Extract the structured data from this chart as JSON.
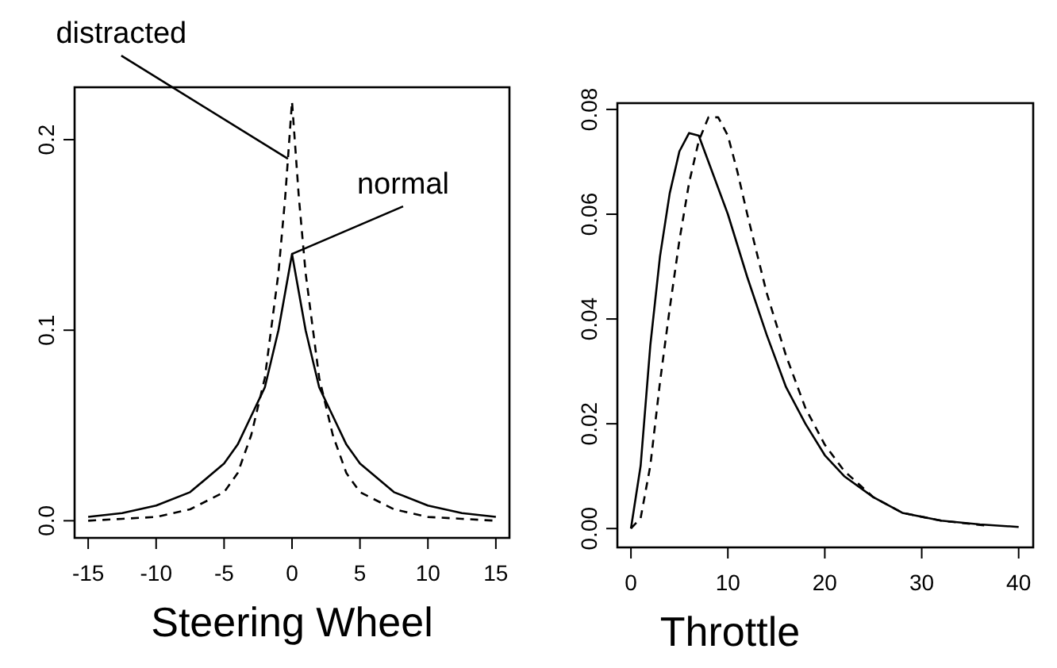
{
  "chart_data": [
    {
      "type": "line",
      "xlabel": "Steering Wheel",
      "xlim": [
        -16,
        16
      ],
      "ylim": [
        -0.009,
        0.2275
      ],
      "xticks": [
        -15,
        -10,
        -5,
        0,
        5,
        10,
        15
      ],
      "yticks": [
        {
          "value": 0,
          "label": "0.0"
        },
        0.1,
        0.2
      ],
      "grid": false,
      "marker": "none",
      "annotations": [
        {
          "text": "distracted",
          "x": -0.3,
          "y": 0.19
        },
        {
          "text": "normal",
          "x": 0,
          "y": 0.14
        }
      ],
      "series": [
        {
          "color": "#000000",
          "line_style": "solid",
          "x": [
            -15,
            -12.5,
            -10,
            -7.5,
            -5,
            -4,
            -3,
            -2,
            -1,
            -0.5,
            0,
            0.5,
            1,
            2,
            3,
            4,
            5,
            7.5,
            10,
            12.5,
            15
          ],
          "values": [
            0.002,
            0.004,
            0.008,
            0.015,
            0.03,
            0.04,
            0.055,
            0.07,
            0.1,
            0.12,
            0.14,
            0.12,
            0.1,
            0.07,
            0.055,
            0.04,
            0.03,
            0.015,
            0.008,
            0.004,
            0.002
          ]
        },
        {
          "color": "#000000",
          "line_style": "dashed",
          "x": [
            -15,
            -12.5,
            -10,
            -7.5,
            -5,
            -4,
            -3,
            -2,
            -1,
            -0.5,
            0,
            0.5,
            1,
            2,
            3,
            4,
            5,
            7.5,
            10,
            12.5,
            15
          ],
          "values": [
            0.0,
            0.001,
            0.002,
            0.006,
            0.015,
            0.025,
            0.045,
            0.075,
            0.13,
            0.17,
            0.22,
            0.17,
            0.13,
            0.075,
            0.045,
            0.025,
            0.015,
            0.006,
            0.002,
            0.001,
            0.0
          ]
        }
      ]
    },
    {
      "type": "line",
      "xlabel": "Throttle",
      "xlim": [
        -1.4,
        41.5
      ],
      "ylim": [
        -0.0036,
        0.0812
      ],
      "xticks": [
        0,
        10,
        20,
        30,
        40
      ],
      "yticks": [
        {
          "value": 0,
          "label": "0.00"
        },
        0.02,
        0.04,
        0.06,
        0.08
      ],
      "grid": false,
      "marker": "none",
      "series": [
        {
          "color": "#000000",
          "line_style": "solid",
          "x": [
            0,
            1,
            2,
            3,
            4,
            5,
            6,
            7,
            8,
            10,
            12,
            14,
            16,
            18,
            20,
            22,
            25,
            28,
            32,
            36,
            40
          ],
          "values": [
            0,
            0.012,
            0.035,
            0.052,
            0.064,
            0.072,
            0.0755,
            0.075,
            0.07,
            0.06,
            0.048,
            0.037,
            0.027,
            0.02,
            0.014,
            0.01,
            0.006,
            0.003,
            0.0015,
            0.0008,
            0.0003
          ]
        },
        {
          "color": "#000000",
          "line_style": "dashed",
          "x": [
            0,
            1,
            2,
            3,
            4,
            5,
            6,
            7,
            8,
            9,
            10,
            11,
            12,
            14,
            16,
            18,
            20,
            22,
            25,
            28,
            32,
            37
          ],
          "values": [
            0,
            0.002,
            0.012,
            0.028,
            0.042,
            0.055,
            0.066,
            0.074,
            0.0785,
            0.0785,
            0.075,
            0.068,
            0.06,
            0.045,
            0.033,
            0.023,
            0.016,
            0.011,
            0.006,
            0.003,
            0.0015,
            0.0005
          ]
        }
      ]
    }
  ]
}
